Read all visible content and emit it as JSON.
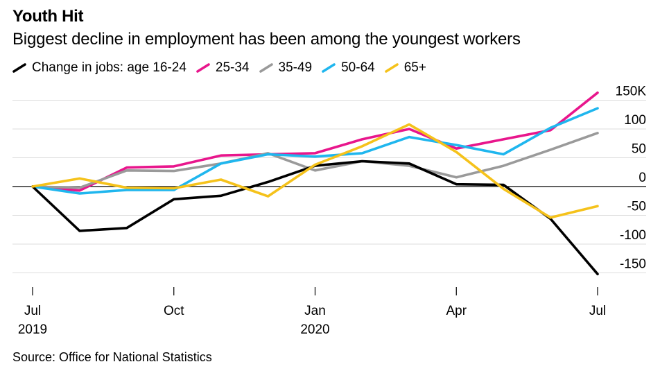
{
  "chart_data": {
    "type": "line",
    "title": "Youth Hit",
    "subtitle": "Biggest decline in employment has been among the youngest workers",
    "source": "Source: Office for National Statistics",
    "x": [
      "2019-07",
      "2019-08",
      "2019-09",
      "2019-10",
      "2019-11",
      "2019-12",
      "2020-01",
      "2020-02",
      "2020-03",
      "2020-04",
      "2020-05",
      "2020-06",
      "2020-07"
    ],
    "x_tick_labels": [
      {
        "label": "Jul",
        "sublabel": "2019",
        "index": 0
      },
      {
        "label": "Oct",
        "sublabel": "",
        "index": 3
      },
      {
        "label": "Jan",
        "sublabel": "2020",
        "index": 6
      },
      {
        "label": "Apr",
        "sublabel": "",
        "index": 9
      },
      {
        "label": "Jul",
        "sublabel": "",
        "index": 12
      }
    ],
    "y_ticks": [
      150,
      100,
      50,
      0,
      -50,
      -100,
      -150
    ],
    "y_tick_labels": [
      "150K",
      "100",
      "50",
      "0",
      "-50",
      "-100",
      "-150"
    ],
    "ylim": [
      -155,
      165
    ],
    "grid": true,
    "legend_position": "top",
    "series": [
      {
        "name": "Change in jobs: age 16-24",
        "color": "#000000",
        "values": [
          0,
          -77,
          -72,
          -22,
          -16,
          8,
          36,
          44,
          40,
          4,
          3,
          -56,
          -152
        ]
      },
      {
        "name": "25-34",
        "color": "#e8168c",
        "values": [
          0,
          -7,
          33,
          35,
          54,
          56,
          58,
          82,
          100,
          66,
          82,
          98,
          163
        ]
      },
      {
        "name": "35-49",
        "color": "#9a9a9a",
        "values": [
          0,
          -2,
          28,
          27,
          40,
          58,
          28,
          44,
          36,
          16,
          36,
          64,
          93
        ]
      },
      {
        "name": "50-64",
        "color": "#1fb6ee",
        "values": [
          0,
          -12,
          -6,
          -6,
          40,
          56,
          52,
          58,
          86,
          72,
          56,
          102,
          136
        ]
      },
      {
        "name": "65+",
        "color": "#f5c21b",
        "values": [
          0,
          14,
          -2,
          -3,
          12,
          -17,
          38,
          70,
          108,
          60,
          -4,
          -54,
          -34
        ]
      }
    ]
  }
}
